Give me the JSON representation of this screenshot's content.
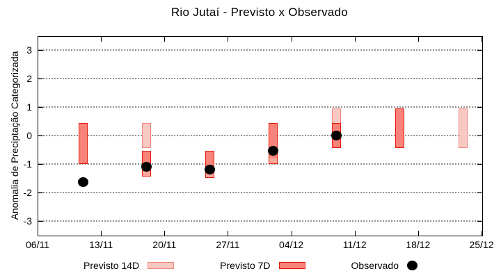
{
  "title": "Rio Jutaí - Previsto x Observado",
  "ylabel": "Anomalia de Preciptação Categorizada",
  "legend": [
    {
      "label": "Previsto 14D",
      "type": "bar14"
    },
    {
      "label": "Previsto 7D",
      "type": "bar7"
    },
    {
      "label": "Observado",
      "type": "dot"
    }
  ],
  "colors": {
    "bar14_fill": "#f8c9c2",
    "bar14_border": "#f0897b",
    "bar7_fill": "#f8837a",
    "bar7_border": "#e41b0c",
    "bar7_light_fill": "#fba89f",
    "dot": "#000000",
    "grid": "#909090",
    "axis": "#000000"
  },
  "chart_data": {
    "type": "bar",
    "subtype": "forecast-range-bars-with-observed-points",
    "title": "Rio Jutaí - Previsto x Observado",
    "xlabel": "",
    "ylabel": "Anomalia de Preciptação Categorizada",
    "ylim": [
      -3.5,
      3.5
    ],
    "y_ticks": [
      3,
      2,
      1,
      0,
      -1,
      -2,
      -3
    ],
    "x_ticks": [
      {
        "label": "06/11",
        "day": 0
      },
      {
        "label": "13/11",
        "day": 7
      },
      {
        "label": "20/11",
        "day": 14
      },
      {
        "label": "27/11",
        "day": 21
      },
      {
        "label": "04/12",
        "day": 28
      },
      {
        "label": "11/12",
        "day": 35
      },
      {
        "label": "18/12",
        "day": 42
      },
      {
        "label": "25/12",
        "day": 49
      }
    ],
    "x_total_days": 49,
    "grid": "horizontal-dotted",
    "legend_position": "below",
    "series": [
      {
        "name": "Previsto 14D",
        "type": "range-bar",
        "style": "bar14",
        "bars": [
          {
            "date": "18/11",
            "day": 12,
            "top": 0.45,
            "bottom": -0.45
          },
          {
            "date": "09/12",
            "day": 33,
            "top": 0.95,
            "bottom": -0.45
          },
          {
            "date": "23/12",
            "day": 47,
            "top": 0.95,
            "bottom": -0.45
          }
        ]
      },
      {
        "name": "Previsto 7D",
        "type": "range-bar",
        "style": "bar7",
        "bars": [
          {
            "date": "11/11",
            "day": 5,
            "top": 0.45,
            "bottom": -1.0
          },
          {
            "date": "18/11",
            "day": 12,
            "top": -0.55,
            "bottom": -1.25,
            "light_bottom": -1.45
          },
          {
            "date": "25/11",
            "day": 19,
            "top": -0.55,
            "bottom": -1.3,
            "light_bottom": -1.5
          },
          {
            "date": "02/12",
            "day": 26,
            "top": 0.45,
            "bottom": -0.8,
            "light_bottom": -1.0
          },
          {
            "date": "09/12",
            "day": 33,
            "top": 0.45,
            "bottom": -0.45
          },
          {
            "date": "16/12",
            "day": 40,
            "top": 0.95,
            "bottom": -0.45
          }
        ]
      },
      {
        "name": "Observado",
        "type": "points",
        "points": [
          {
            "date": "11/11",
            "day": 5,
            "value": -1.65
          },
          {
            "date": "18/11",
            "day": 12,
            "value": -1.1
          },
          {
            "date": "25/11",
            "day": 19,
            "value": -1.2
          },
          {
            "date": "02/12",
            "day": 26,
            "value": -0.55
          },
          {
            "date": "09/12",
            "day": 33,
            "value": 0.0
          }
        ]
      }
    ]
  }
}
